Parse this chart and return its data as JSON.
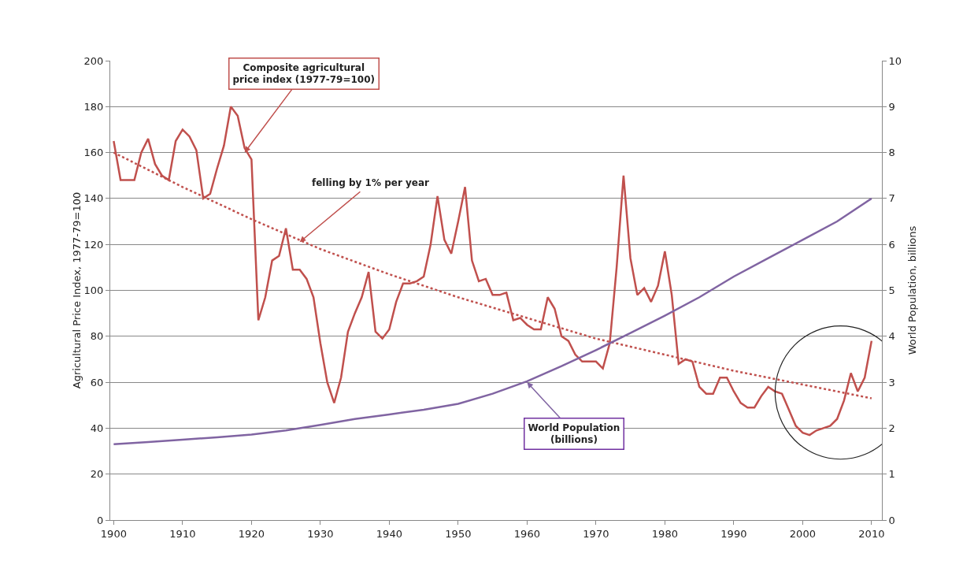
{
  "chart_data": {
    "type": "line",
    "ylabel": "Agricultural Price Index, 1977-79=100",
    "y2label": "World Population, billions",
    "xlim": [
      1899.5,
      2011.5
    ],
    "xticks": [
      1900,
      1910,
      1920,
      1930,
      1940,
      1950,
      1960,
      1970,
      1980,
      1990,
      2000,
      2010
    ],
    "ylim": [
      0,
      200
    ],
    "yticks": [
      0,
      20,
      40,
      60,
      80,
      100,
      120,
      140,
      160,
      180,
      200
    ],
    "y2lim": [
      0,
      10
    ],
    "y2ticks": [
      0,
      1,
      2,
      3,
      4,
      5,
      6,
      7,
      8,
      9,
      10
    ],
    "grid": "y",
    "marker": "none",
    "series": [
      {
        "color": "#c0504d",
        "line_style": "solid",
        "x": [
          1900,
          1901,
          1902,
          1903,
          1904,
          1905,
          1906,
          1907,
          1908,
          1909,
          1910,
          1911,
          1912,
          1913,
          1914,
          1915,
          1916,
          1917,
          1918,
          1919,
          1920,
          1921,
          1922,
          1923,
          1924,
          1925,
          1926,
          1927,
          1928,
          1929,
          1930,
          1931,
          1932,
          1933,
          1934,
          1935,
          1936,
          1937,
          1938,
          1939,
          1940,
          1941,
          1942,
          1943,
          1944,
          1945,
          1946,
          1947,
          1948,
          1949,
          1950,
          1951,
          1952,
          1953,
          1954,
          1955,
          1956,
          1957,
          1958,
          1959,
          1960,
          1961,
          1962,
          1963,
          1964,
          1965,
          1966,
          1967,
          1968,
          1969,
          1970,
          1971,
          1972,
          1973,
          1974,
          1975,
          1976,
          1977,
          1978,
          1979,
          1980,
          1981,
          1982,
          1983,
          1984,
          1985,
          1986,
          1987,
          1988,
          1989,
          1990,
          1991,
          1992,
          1993,
          1994,
          1995,
          1996,
          1997,
          1998,
          1999,
          2000,
          2001,
          2002,
          2003,
          2004,
          2005,
          2006,
          2007,
          2008,
          2009,
          2010
        ],
        "values": [
          165,
          148,
          148,
          148,
          160,
          166,
          155,
          150,
          148,
          165,
          170,
          167,
          161,
          140,
          142,
          153,
          163,
          180,
          176,
          162,
          157,
          87,
          97,
          113,
          115,
          127,
          109,
          109,
          105,
          97,
          77,
          60,
          51,
          62,
          82,
          90,
          97,
          108,
          82,
          79,
          83,
          95,
          103,
          103,
          104,
          106,
          120,
          141,
          122,
          116,
          130,
          145,
          113,
          104,
          105,
          98,
          98,
          99,
          87,
          88,
          85,
          83,
          83,
          97,
          92,
          80,
          78,
          72,
          69,
          69,
          69,
          66,
          77,
          110,
          150,
          114,
          98,
          101,
          95,
          102,
          117,
          98,
          68,
          70,
          69,
          58,
          55,
          55,
          62,
          62,
          56,
          51,
          49,
          49,
          54,
          58,
          56,
          55,
          48,
          41,
          38,
          37,
          39,
          40,
          41,
          44,
          52,
          64,
          56,
          62,
          78
        ]
      },
      {
        "color": "#c0504d",
        "line_style": "dotted",
        "x": [
          1900,
          1910,
          1920,
          1930,
          1940,
          1950,
          1960,
          1970,
          1980,
          1990,
          2000,
          2010
        ],
        "values": [
          160,
          145,
          131,
          118,
          107,
          97,
          88,
          79,
          72,
          65,
          59,
          53
        ]
      },
      {
        "color": "#8064a2",
        "line_style": "solid",
        "axis": "y2",
        "x": [
          1900,
          1905,
          1910,
          1915,
          1920,
          1925,
          1930,
          1935,
          1940,
          1945,
          1950,
          1955,
          1960,
          1965,
          1970,
          1975,
          1980,
          1985,
          1990,
          1995,
          2000,
          2005,
          2010
        ],
        "values": [
          1.65,
          1.7,
          1.75,
          1.8,
          1.86,
          1.95,
          2.07,
          2.2,
          2.3,
          2.4,
          2.53,
          2.75,
          3.02,
          3.35,
          3.7,
          4.07,
          4.45,
          4.85,
          5.3,
          5.7,
          6.1,
          6.5,
          7.0
        ]
      }
    ],
    "annotations": [
      {
        "text": "Composite agricultural\nprice index (1977-79=100)",
        "x": 1919,
        "y": 160
      },
      {
        "text": "felling by 1% per year",
        "x": 1927,
        "y": 121
      },
      {
        "text": "World Population\n(billions)",
        "x": 1960,
        "y": 60
      }
    ]
  }
}
